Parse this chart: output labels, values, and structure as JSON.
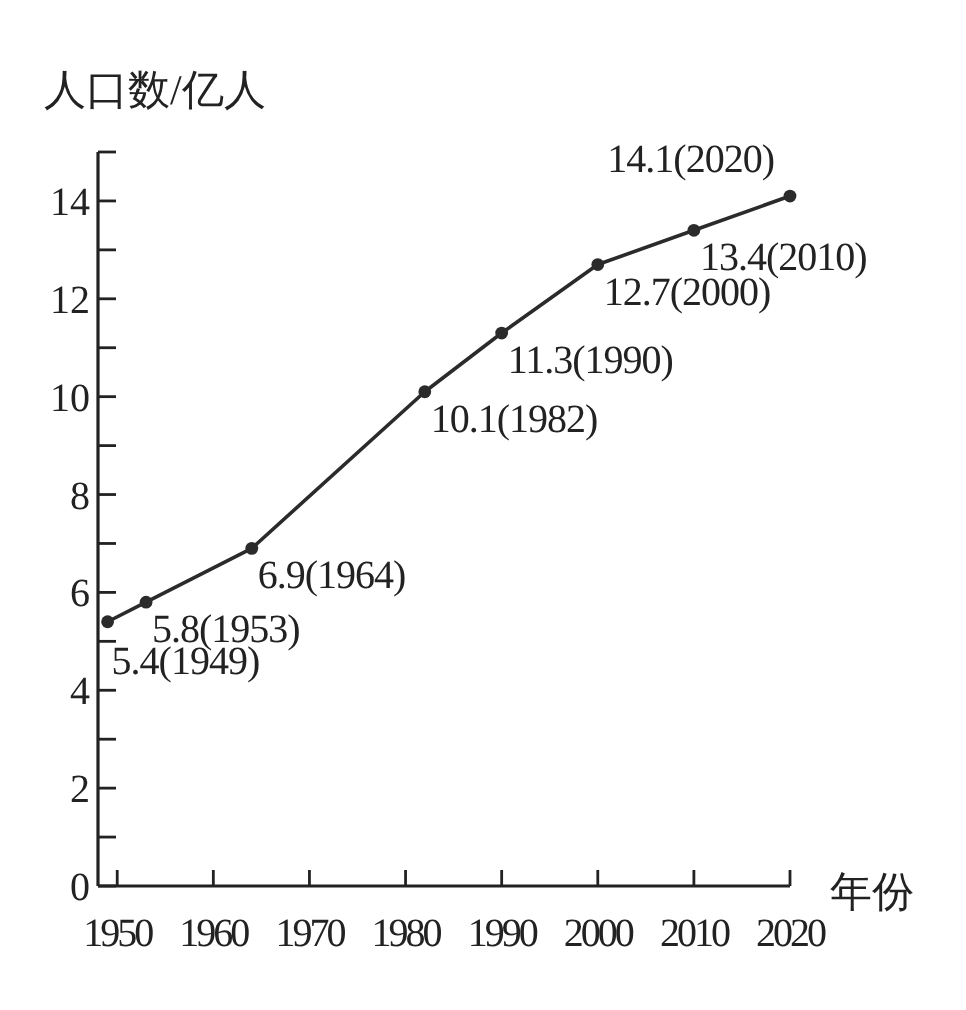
{
  "chart_data": {
    "type": "line",
    "ylabel": "人口数/亿人",
    "xlabel": "年份",
    "x": [
      1949,
      1953,
      1964,
      1982,
      1990,
      2000,
      2010,
      2020
    ],
    "series": [
      {
        "color": "#2b2b2b",
        "values": [
          5.4,
          5.8,
          6.9,
          10.1,
          11.3,
          12.7,
          13.4,
          14.1
        ],
        "value_labels": [
          "5.4(1949)",
          "5.8(1953)",
          "6.9(1964)",
          "10.1(1982)",
          "11.3(1990)",
          "12.7(2000)",
          "13.4(2010)",
          "14.1(2020)"
        ]
      }
    ],
    "marker": "circle",
    "line_style": "solid",
    "xlim": [
      1948,
      2020
    ],
    "ylim": [
      0,
      15
    ],
    "xticks": [
      1950,
      1960,
      1970,
      1980,
      1990,
      2000,
      2010,
      2020
    ],
    "yticks": [
      0,
      {
        "value": 1,
        "label": null
      },
      2,
      {
        "value": 3,
        "label": null
      },
      4,
      {
        "value": 5,
        "label": null
      },
      6,
      {
        "value": 7,
        "label": null
      },
      8,
      {
        "value": 9,
        "label": null
      },
      10,
      {
        "value": 11,
        "label": null
      },
      12,
      {
        "value": 13,
        "label": null
      },
      14,
      {
        "value": 15,
        "label": null
      }
    ],
    "grid": false
  }
}
